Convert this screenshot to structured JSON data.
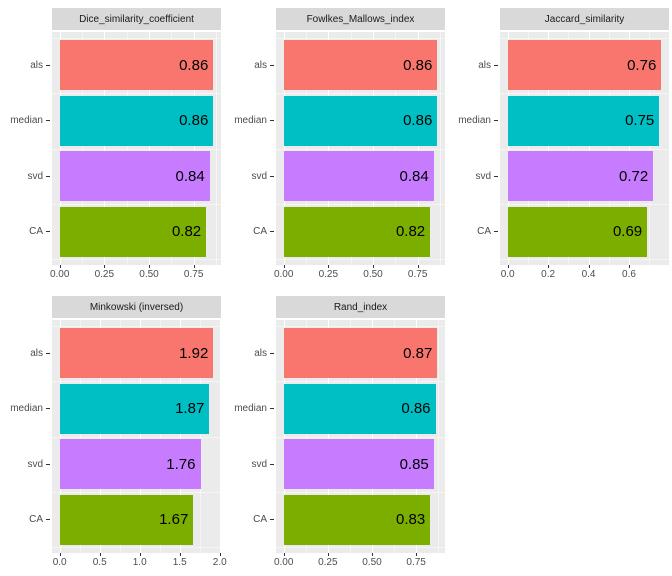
{
  "palette": {
    "als": "#F8766D",
    "median": "#00BFC4",
    "svd": "#C77CFF",
    "CA": "#7CAE00"
  },
  "theme": {
    "page_bg": "#FFFFFF",
    "panel_bg": "#EBEBEB",
    "strip_bg": "#D9D9D9",
    "grid_color": "#FFFFFF",
    "axis_text_color": "#4D4D4D",
    "tick_mark_color": "#333333",
    "bar_label_color": "#000000"
  },
  "chart_data": [
    {
      "id": "dice-similarity-coefficient",
      "type": "bar",
      "orientation": "horizontal",
      "title": "Dice_similarity_coefficient",
      "categories": [
        "als",
        "median",
        "svd",
        "CA"
      ],
      "values": [
        0.86,
        0.86,
        0.84,
        0.82
      ],
      "value_labels": [
        "0.86",
        "0.86",
        "0.84",
        "0.82"
      ],
      "xticks": [
        0,
        0.25,
        0.5,
        0.75
      ],
      "xtick_labels": [
        "0.00",
        "0.25",
        "0.50",
        "0.75"
      ],
      "xlim": [
        0,
        0.86
      ],
      "grid": "on",
      "legend": "none"
    },
    {
      "id": "fowlkes-mallows-index",
      "type": "bar",
      "orientation": "horizontal",
      "title": "Fowlkes_Mallows_index",
      "categories": [
        "als",
        "median",
        "svd",
        "CA"
      ],
      "values": [
        0.86,
        0.86,
        0.84,
        0.82
      ],
      "value_labels": [
        "0.86",
        "0.86",
        "0.84",
        "0.82"
      ],
      "xticks": [
        0,
        0.25,
        0.5,
        0.75
      ],
      "xtick_labels": [
        "0.00",
        "0.25",
        "0.50",
        "0.75"
      ],
      "xlim": [
        0,
        0.86
      ],
      "grid": "on",
      "legend": "none"
    },
    {
      "id": "jaccard-similarity",
      "type": "bar",
      "orientation": "horizontal",
      "title": "Jaccard_similarity",
      "categories": [
        "als",
        "median",
        "svd",
        "CA"
      ],
      "values": [
        0.76,
        0.75,
        0.72,
        0.69
      ],
      "value_labels": [
        "0.76",
        "0.75",
        "0.72",
        "0.69"
      ],
      "xticks": [
        0,
        0.2,
        0.4,
        0.6
      ],
      "xtick_labels": [
        "0.0",
        "0.2",
        "0.4",
        "0.6"
      ],
      "xlim": [
        0,
        0.76
      ],
      "grid": "on",
      "legend": "none"
    },
    {
      "id": "minkowski-inversed",
      "type": "bar",
      "orientation": "horizontal",
      "title": "Minkowski (inversed)",
      "categories": [
        "als",
        "median",
        "svd",
        "CA"
      ],
      "values": [
        1.92,
        1.87,
        1.76,
        1.67
      ],
      "value_labels": [
        "1.92",
        "1.87",
        "1.76",
        "1.67"
      ],
      "xticks": [
        0,
        0.5,
        1.0,
        1.5,
        2.0
      ],
      "xtick_labels": [
        "0.0",
        "0.5",
        "1.0",
        "1.5",
        "2.0"
      ],
      "xlim": [
        0,
        1.92
      ],
      "grid": "on",
      "legend": "none"
    },
    {
      "id": "rand-index",
      "type": "bar",
      "orientation": "horizontal",
      "title": "Rand_index",
      "categories": [
        "als",
        "median",
        "svd",
        "CA"
      ],
      "values": [
        0.87,
        0.86,
        0.85,
        0.83
      ],
      "value_labels": [
        "0.87",
        "0.86",
        "0.85",
        "0.83"
      ],
      "xticks": [
        0,
        0.25,
        0.5,
        0.75
      ],
      "xtick_labels": [
        "0.00",
        "0.25",
        "0.50",
        "0.75"
      ],
      "xlim": [
        0,
        0.87
      ],
      "grid": "on",
      "legend": "none"
    }
  ]
}
